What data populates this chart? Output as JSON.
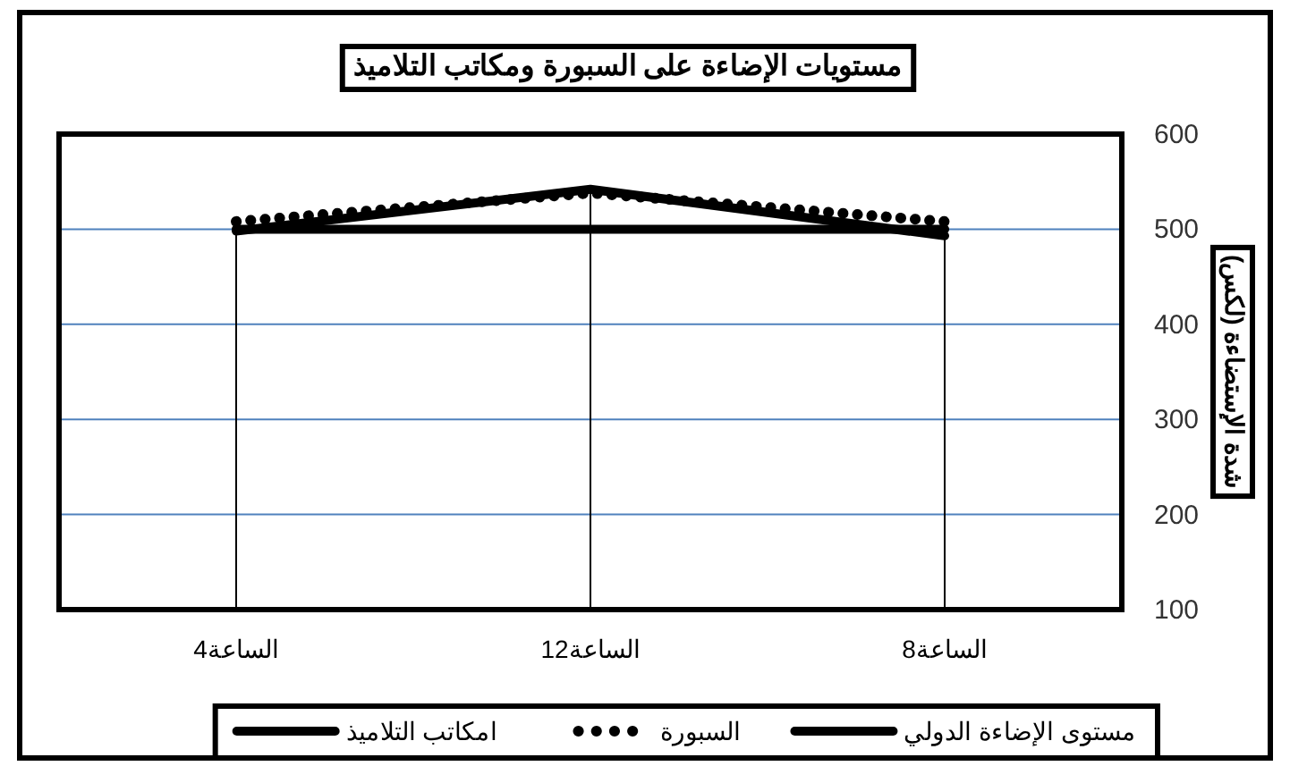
{
  "chart_data": {
    "type": "line",
    "title": "مستويات الإضاءة على السبورة ومكاتب التلاميذ",
    "ylabel": "شدة الإستضاءة (لكس)",
    "categories": [
      "الساعة4",
      "الساعة12",
      "الساعة8"
    ],
    "series": [
      {
        "name": "مستوى الإضاءة الدولي",
        "color": "#000000",
        "line_style": "solid",
        "values": [
          500,
          500,
          500
        ]
      },
      {
        "name": "السبورة",
        "color": "#000000",
        "line_style": "dotted",
        "values": [
          508,
          538,
          508
        ]
      },
      {
        "name": "امكاتب التلاميذ",
        "color": "#000000",
        "line_style": "solid",
        "values": [
          498,
          542,
          493
        ]
      }
    ],
    "ylim": [
      100,
      600
    ],
    "yticks": [
      100,
      200,
      300,
      400,
      500,
      600
    ],
    "grid": true,
    "legend": "bottom",
    "marker": "none"
  }
}
